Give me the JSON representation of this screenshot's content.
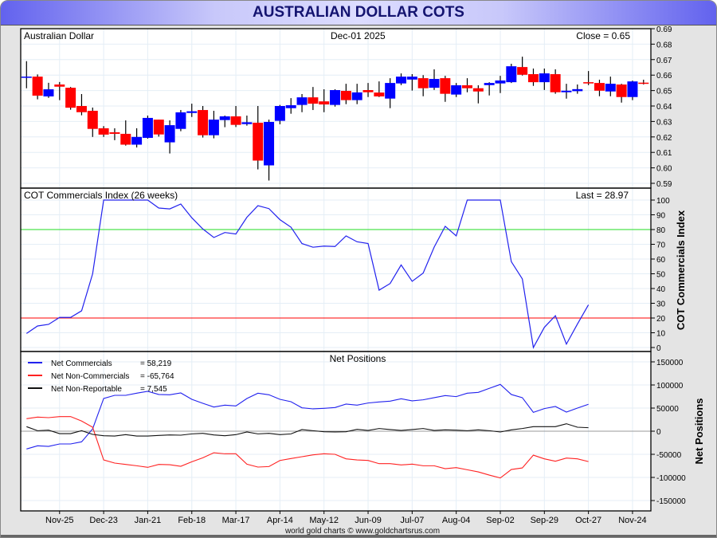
{
  "title": "AUSTRALIAN DOLLAR COTS",
  "footer": "world gold charts © www.goldchartsrus.com",
  "colors": {
    "up": "#0000ff",
    "down": "#ff0000",
    "commercials": "#2222ee",
    "non_commercials": "#ff2222",
    "non_reportable": "#111111",
    "level80": "#22dd22",
    "level20": "#ff0000",
    "grid": "#e4eef6"
  },
  "chart_data": [
    {
      "type": "candlestick",
      "title": "Australian Dollar",
      "date_label": "Dec-01  2025",
      "close_label": "Close = 0.65",
      "ylim": [
        0.59,
        0.69
      ],
      "yticks": [
        "0.59",
        "0.60",
        "0.61",
        "0.62",
        "0.63",
        "0.64",
        "0.65",
        "0.66",
        "0.67",
        "0.68",
        "0.69"
      ],
      "ohlc": [
        [
          0.659,
          0.669,
          0.6515,
          0.659
        ],
        [
          0.659,
          0.6604,
          0.6443,
          0.6467
        ],
        [
          0.6462,
          0.655,
          0.6453,
          0.6508
        ],
        [
          0.6539,
          0.6555,
          0.6438,
          0.6525
        ],
        [
          0.6518,
          0.6523,
          0.6376,
          0.6389
        ],
        [
          0.64,
          0.6477,
          0.634,
          0.636
        ],
        [
          0.6369,
          0.639,
          0.62,
          0.6252
        ],
        [
          0.6256,
          0.627,
          0.62,
          0.6215
        ],
        [
          0.623,
          0.6256,
          0.6179,
          0.622
        ],
        [
          0.622,
          0.6307,
          0.6144,
          0.615
        ],
        [
          0.615,
          0.6256,
          0.6132,
          0.62
        ],
        [
          0.6194,
          0.6338,
          0.6189,
          0.6323
        ],
        [
          0.6312,
          0.6312,
          0.6202,
          0.6216
        ],
        [
          0.6165,
          0.6307,
          0.6093,
          0.6276
        ],
        [
          0.6252,
          0.6374,
          0.6237,
          0.6359
        ],
        [
          0.6355,
          0.6415,
          0.6329,
          0.6366
        ],
        [
          0.6374,
          0.64,
          0.6196,
          0.6211
        ],
        [
          0.6211,
          0.6369,
          0.6191,
          0.6312
        ],
        [
          0.6309,
          0.6338,
          0.6263,
          0.6333
        ],
        [
          0.6333,
          0.64,
          0.6264,
          0.6278
        ],
        [
          0.6283,
          0.6338,
          0.6273,
          0.6295
        ],
        [
          0.6292,
          0.64,
          0.599,
          0.6047
        ],
        [
          0.6016,
          0.6312,
          0.5918,
          0.6297
        ],
        [
          0.6304,
          0.6407,
          0.6282,
          0.64
        ],
        [
          0.6386,
          0.6451,
          0.635,
          0.6405
        ],
        [
          0.6407,
          0.6477,
          0.636,
          0.6456
        ],
        [
          0.6456,
          0.6523,
          0.6374,
          0.6415
        ],
        [
          0.643,
          0.6508,
          0.636,
          0.641
        ],
        [
          0.6407,
          0.6508,
          0.6396,
          0.6503
        ],
        [
          0.6498,
          0.6544,
          0.6412,
          0.6438
        ],
        [
          0.6438,
          0.6544,
          0.6412,
          0.6488
        ],
        [
          0.6503,
          0.6549,
          0.6458,
          0.6489
        ],
        [
          0.6487,
          0.6559,
          0.6458,
          0.6462
        ],
        [
          0.6448,
          0.658,
          0.6386,
          0.6549
        ],
        [
          0.6546,
          0.6611,
          0.6535,
          0.659
        ],
        [
          0.6571,
          0.6606,
          0.65,
          0.659
        ],
        [
          0.658,
          0.66,
          0.6463,
          0.6515
        ],
        [
          0.6518,
          0.6637,
          0.6504,
          0.6575
        ],
        [
          0.658,
          0.6595,
          0.6427,
          0.6479
        ],
        [
          0.6474,
          0.6549,
          0.6458,
          0.6534
        ],
        [
          0.6534,
          0.658,
          0.6489,
          0.6515
        ],
        [
          0.6515,
          0.6534,
          0.6417,
          0.6494
        ],
        [
          0.6535,
          0.6554,
          0.6468,
          0.6549
        ],
        [
          0.6546,
          0.6595,
          0.6484,
          0.6565
        ],
        [
          0.6554,
          0.6673,
          0.6549,
          0.6657
        ],
        [
          0.6652,
          0.6719,
          0.6597,
          0.6602
        ],
        [
          0.6606,
          0.6642,
          0.653,
          0.6554
        ],
        [
          0.6554,
          0.6642,
          0.6504,
          0.6611
        ],
        [
          0.6606,
          0.6637,
          0.6479,
          0.6489
        ],
        [
          0.6489,
          0.6544,
          0.6448,
          0.6499
        ],
        [
          0.6496,
          0.6539,
          0.6479,
          0.6509
        ],
        [
          0.6554,
          0.6626,
          0.6535,
          0.6546
        ],
        [
          0.6549,
          0.657,
          0.6463,
          0.6499
        ],
        [
          0.6494,
          0.659,
          0.6463,
          0.6544
        ],
        [
          0.6539,
          0.6544,
          0.6422,
          0.6458
        ],
        [
          0.6458,
          0.6564,
          0.6438,
          0.6559
        ],
        [
          0.6551,
          0.657,
          0.6539,
          0.6546
        ]
      ]
    },
    {
      "type": "line",
      "title": "COT Commercials Index (26 weeks)",
      "last_label": "Last = 28.97",
      "ylabel": "COT Commercials Index",
      "ylim": [
        0,
        100
      ],
      "yticks": [
        "0",
        "10",
        "20",
        "30",
        "40",
        "50",
        "60",
        "70",
        "80",
        "90",
        "100"
      ],
      "levels": [
        80,
        20
      ],
      "values": [
        9.5,
        14.6,
        15.7,
        20.4,
        20.4,
        24.9,
        50,
        100,
        100,
        100,
        100,
        100,
        94.6,
        94,
        97.3,
        88,
        80.4,
        74.6,
        78,
        77,
        88.3,
        96.2,
        94.2,
        86.7,
        81.6,
        70.5,
        68,
        68.8,
        68.5,
        75.7,
        71.7,
        70.5,
        38.9,
        43.4,
        56,
        44.9,
        50.5,
        68.1,
        82.2,
        75.7,
        100,
        100,
        100,
        100,
        58.2,
        46.5,
        0,
        13.7,
        21.6,
        2.3,
        15.9,
        28.97
      ]
    },
    {
      "type": "line",
      "title": "Net Positions",
      "ylabel": "Net Positions",
      "ylim": [
        -175000,
        175000
      ],
      "yticks": [
        "-150000",
        "-100000",
        "-50000",
        "0",
        "50000",
        "100000",
        "150000"
      ],
      "series": [
        {
          "name": "Net Commercials",
          "last": "= 58,219",
          "values": [
            -38500,
            -31600,
            -32800,
            -27600,
            -27600,
            -23000,
            5000,
            70700,
            77600,
            77600,
            82200,
            86300,
            79400,
            78800,
            82800,
            69000,
            60400,
            52300,
            56400,
            54600,
            70700,
            82200,
            78800,
            69000,
            63800,
            50600,
            48300,
            49500,
            51200,
            58700,
            56400,
            61000,
            63300,
            65000,
            70200,
            65600,
            67900,
            72500,
            77100,
            74800,
            82200,
            84000,
            92600,
            101200,
            79400,
            72500,
            40800,
            48900,
            53500,
            41400,
            50000,
            58219
          ]
        },
        {
          "name": "Net Non-Commercials",
          "last": "= -65,764",
          "values": [
            27000,
            30500,
            29300,
            31600,
            31600,
            21900,
            8600,
            -62100,
            -69000,
            -71900,
            -74800,
            -78200,
            -71900,
            -72500,
            -75900,
            -66100,
            -57500,
            -46600,
            -48900,
            -48900,
            -71300,
            -77600,
            -76500,
            -63300,
            -59200,
            -55200,
            -51200,
            -48900,
            -50000,
            -59800,
            -62100,
            -63300,
            -70200,
            -70200,
            -73000,
            -71300,
            -74800,
            -74800,
            -81100,
            -78800,
            -83400,
            -88000,
            -94900,
            -101200,
            -82800,
            -79400,
            -51800,
            -59800,
            -65000,
            -58100,
            -59800,
            -65764
          ]
        },
        {
          "name": "Net Non-Reportable",
          "last": "= 7,545",
          "values": [
            9800,
            1100,
            2300,
            -5200,
            -5200,
            1100,
            -6900,
            -9800,
            -10400,
            -7500,
            -10400,
            -10400,
            -9200,
            -8100,
            -8600,
            -5800,
            -4600,
            -8100,
            -9800,
            -7500,
            -1700,
            -5800,
            -4600,
            -7500,
            -5800,
            3500,
            1100,
            -1200,
            -1700,
            -1200,
            4000,
            1700,
            5800,
            3500,
            1700,
            3500,
            5800,
            1700,
            2900,
            2300,
            1100,
            2900,
            1100,
            -1700,
            2900,
            5800,
            9800,
            9800,
            9800,
            16100,
            8600,
            7545
          ]
        }
      ]
    }
  ],
  "x_axis": {
    "labels": [
      "Nov-25",
      "Dec-23",
      "Jan-21",
      "Feb-18",
      "Mar-17",
      "Apr-14",
      "May-12",
      "Jun-09",
      "Jul-07",
      "Aug-04",
      "Sep-02",
      "Sep-29",
      "Oct-27",
      "Nov-24"
    ],
    "first_label_week": 3,
    "label_every_weeks": 4
  }
}
